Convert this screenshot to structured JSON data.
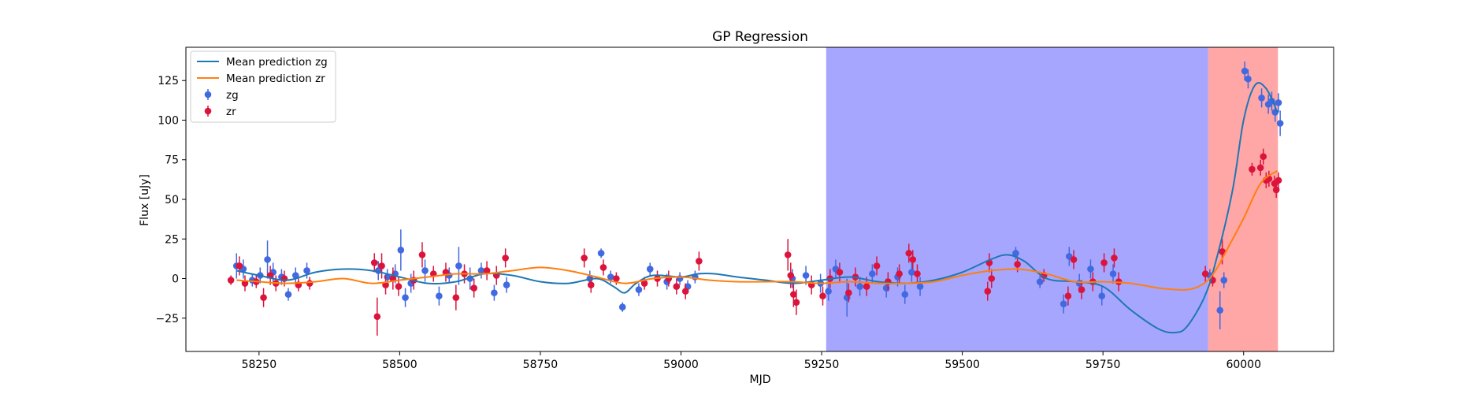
{
  "chart_data": {
    "type": "scatter",
    "title": "GP Regression",
    "xlabel": "MJD",
    "ylabel": "Flux [uJy]",
    "xlim": [
      58120,
      60160
    ],
    "ylim": [
      -46,
      146
    ],
    "xticks": [
      58250,
      58500,
      58750,
      59000,
      59250,
      59500,
      59750,
      60000
    ],
    "yticks": [
      -25,
      0,
      25,
      50,
      75,
      100,
      125
    ],
    "legend_position": "top-left",
    "legend": [
      {
        "label": "Mean prediction zg",
        "kind": "line",
        "color": "#1f77b4"
      },
      {
        "label": "Mean prediction zr",
        "kind": "line",
        "color": "#ff7f0e"
      },
      {
        "label": "zg",
        "kind": "errorbar",
        "color": "#4169e1"
      },
      {
        "label": "zr",
        "kind": "errorbar",
        "color": "#dc143c"
      }
    ],
    "shaded_regions": [
      {
        "x0": 59258,
        "x1": 59937,
        "color": "#0000ff",
        "opacity": 0.35
      },
      {
        "x0": 59937,
        "x1": 60061,
        "color": "#ff0000",
        "opacity": 0.35
      }
    ],
    "series": [
      {
        "name": "Mean prediction zg",
        "kind": "line",
        "color": "#1f77b4",
        "x": [
          58210,
          58250,
          58300,
          58350,
          58400,
          58450,
          58500,
          58550,
          58600,
          58650,
          58700,
          58750,
          58800,
          58850,
          58880,
          58900,
          58920,
          58950,
          59000,
          59030,
          59060,
          59100,
          59150,
          59200,
          59250,
          59300,
          59350,
          59400,
          59450,
          59500,
          59550,
          59580,
          59610,
          59650,
          59700,
          59750,
          59800,
          59850,
          59880,
          59900,
          59930,
          59950,
          59980,
          60000,
          60020,
          60040,
          60060
        ],
        "y": [
          5,
          2,
          -1,
          4,
          6,
          5,
          1,
          -3,
          -2,
          3,
          2,
          -2,
          -3,
          0,
          -5,
          -9,
          -3,
          2,
          1,
          3,
          3,
          1,
          -1,
          -3,
          -1,
          1,
          -2,
          -3,
          -1,
          4,
          12,
          15,
          11,
          0,
          -2,
          -5,
          -20,
          -32,
          -34,
          -30,
          -12,
          10,
          55,
          100,
          122,
          120,
          105
        ]
      },
      {
        "name": "Mean prediction zr",
        "kind": "line",
        "color": "#ff7f0e",
        "x": [
          58210,
          58250,
          58300,
          58350,
          58400,
          58450,
          58500,
          58550,
          58600,
          58650,
          58700,
          58750,
          58800,
          58850,
          58900,
          58950,
          59000,
          59050,
          59100,
          59150,
          59200,
          59250,
          59300,
          59350,
          59400,
          59450,
          59500,
          59550,
          59600,
          59650,
          59700,
          59750,
          59800,
          59850,
          59900,
          59930,
          59950,
          59970,
          60000,
          60030,
          60060
        ],
        "y": [
          -1,
          -2,
          -3,
          -2,
          0,
          -3,
          -1,
          1,
          3,
          3,
          5,
          7,
          5,
          1,
          -3,
          0,
          1,
          -1,
          -2,
          -2,
          -2,
          -3,
          -2,
          -3,
          -3,
          -2,
          2,
          5,
          6,
          3,
          -2,
          -2,
          -3,
          -6,
          -7,
          -3,
          5,
          18,
          38,
          60,
          68
        ]
      },
      {
        "name": "zg",
        "kind": "errorbar",
        "color": "#4169e1",
        "points": [
          [
            58210,
            8,
            8
          ],
          [
            58222,
            6,
            6
          ],
          [
            58238,
            -1,
            4
          ],
          [
            58252,
            2,
            5
          ],
          [
            58265,
            12,
            12
          ],
          [
            58275,
            4,
            6
          ],
          [
            58290,
            1,
            5
          ],
          [
            58302,
            -10,
            4
          ],
          [
            58315,
            2,
            5
          ],
          [
            58335,
            5,
            5
          ],
          [
            58462,
            5,
            6
          ],
          [
            58478,
            1,
            5
          ],
          [
            58492,
            3,
            6
          ],
          [
            58502,
            18,
            13
          ],
          [
            58510,
            -12,
            6
          ],
          [
            58520,
            -3,
            6
          ],
          [
            58545,
            5,
            7
          ],
          [
            58570,
            -11,
            6
          ],
          [
            58588,
            2,
            5
          ],
          [
            58605,
            8,
            12
          ],
          [
            58625,
            0,
            7
          ],
          [
            58645,
            5,
            5
          ],
          [
            58668,
            -9,
            5
          ],
          [
            58690,
            -4,
            5
          ],
          [
            58838,
            0,
            5
          ],
          [
            58858,
            16,
            3
          ],
          [
            58875,
            1,
            4
          ],
          [
            58896,
            -18,
            3
          ],
          [
            58925,
            -7,
            4
          ],
          [
            58945,
            6,
            4
          ],
          [
            58975,
            -2,
            5
          ],
          [
            58998,
            0,
            4
          ],
          [
            59012,
            -5,
            4
          ],
          [
            59025,
            1,
            4
          ],
          [
            59198,
            0,
            6
          ],
          [
            59222,
            2,
            6
          ],
          [
            59248,
            -3,
            6
          ],
          [
            59262,
            -8,
            6
          ],
          [
            59275,
            6,
            6
          ],
          [
            59295,
            -12,
            12
          ],
          [
            59318,
            -5,
            6
          ],
          [
            59340,
            3,
            6
          ],
          [
            59365,
            -6,
            6
          ],
          [
            59385,
            1,
            6
          ],
          [
            59398,
            -10,
            6
          ],
          [
            59410,
            4,
            6
          ],
          [
            59425,
            -5,
            6
          ],
          [
            59595,
            16,
            4
          ],
          [
            59638,
            -2,
            4
          ],
          [
            59680,
            -16,
            6
          ],
          [
            59690,
            14,
            6
          ],
          [
            59708,
            -3,
            6
          ],
          [
            59728,
            6,
            6
          ],
          [
            59748,
            -11,
            6
          ],
          [
            59768,
            3,
            6
          ],
          [
            59940,
            2,
            4
          ],
          [
            59958,
            -20,
            12
          ],
          [
            59965,
            -1,
            5
          ],
          [
            60002,
            131,
            6
          ],
          [
            60008,
            126,
            6
          ],
          [
            60032,
            114,
            6
          ],
          [
            60044,
            110,
            6
          ],
          [
            60050,
            112,
            6
          ],
          [
            60056,
            105,
            6
          ],
          [
            60062,
            111,
            6
          ],
          [
            60065,
            98,
            8
          ]
        ]
      },
      {
        "name": "zr",
        "kind": "errorbar",
        "color": "#dc143c",
        "points": [
          [
            58200,
            -1,
            3
          ],
          [
            58215,
            8,
            6
          ],
          [
            58225,
            -3,
            5
          ],
          [
            58245,
            -2,
            4
          ],
          [
            58258,
            -12,
            6
          ],
          [
            58270,
            2,
            6
          ],
          [
            58280,
            -3,
            5
          ],
          [
            58295,
            0,
            5
          ],
          [
            58320,
            -4,
            4
          ],
          [
            58340,
            -3,
            4
          ],
          [
            58455,
            10,
            6
          ],
          [
            58460,
            -24,
            12
          ],
          [
            58468,
            8,
            8
          ],
          [
            58475,
            -4,
            6
          ],
          [
            58488,
            0,
            7
          ],
          [
            58498,
            -5,
            6
          ],
          [
            58525,
            -1,
            6
          ],
          [
            58540,
            15,
            8
          ],
          [
            58560,
            3,
            5
          ],
          [
            58582,
            4,
            6
          ],
          [
            58600,
            -12,
            8
          ],
          [
            58615,
            3,
            6
          ],
          [
            58632,
            -6,
            6
          ],
          [
            58655,
            5,
            6
          ],
          [
            58672,
            2,
            6
          ],
          [
            58688,
            13,
            6
          ],
          [
            58828,
            13,
            6
          ],
          [
            58840,
            -4,
            5
          ],
          [
            58862,
            7,
            5
          ],
          [
            58885,
            0,
            4
          ],
          [
            58935,
            -3,
            4
          ],
          [
            58958,
            0,
            5
          ],
          [
            58978,
            0,
            5
          ],
          [
            58992,
            -5,
            5
          ],
          [
            59008,
            -8,
            5
          ],
          [
            59032,
            11,
            6
          ],
          [
            59190,
            15,
            10
          ],
          [
            59195,
            2,
            8
          ],
          [
            59200,
            -10,
            8
          ],
          [
            59205,
            -15,
            8
          ],
          [
            59232,
            -4,
            6
          ],
          [
            59252,
            -11,
            6
          ],
          [
            59265,
            0,
            6
          ],
          [
            59282,
            4,
            6
          ],
          [
            59298,
            -9,
            6
          ],
          [
            59310,
            1,
            6
          ],
          [
            59330,
            -5,
            6
          ],
          [
            59348,
            8,
            6
          ],
          [
            59368,
            -2,
            6
          ],
          [
            59388,
            3,
            6
          ],
          [
            59405,
            16,
            6
          ],
          [
            59412,
            12,
            6
          ],
          [
            59420,
            3,
            6
          ],
          [
            59545,
            -8,
            6
          ],
          [
            59548,
            10,
            6
          ],
          [
            59552,
            0,
            6
          ],
          [
            59598,
            9,
            5
          ],
          [
            59645,
            2,
            4
          ],
          [
            59688,
            -11,
            6
          ],
          [
            59698,
            12,
            6
          ],
          [
            59712,
            -7,
            6
          ],
          [
            59732,
            -2,
            6
          ],
          [
            59752,
            10,
            6
          ],
          [
            59770,
            13,
            6
          ],
          [
            59778,
            -2,
            6
          ],
          [
            59932,
            3,
            5
          ],
          [
            59945,
            -1,
            4
          ],
          [
            59962,
            17,
            8
          ],
          [
            60015,
            69,
            4
          ],
          [
            60030,
            70,
            5
          ],
          [
            60035,
            77,
            5
          ],
          [
            60040,
            62,
            5
          ],
          [
            60045,
            63,
            5
          ],
          [
            60055,
            60,
            5
          ],
          [
            60058,
            56,
            5
          ],
          [
            60062,
            62,
            5
          ]
        ]
      }
    ]
  }
}
